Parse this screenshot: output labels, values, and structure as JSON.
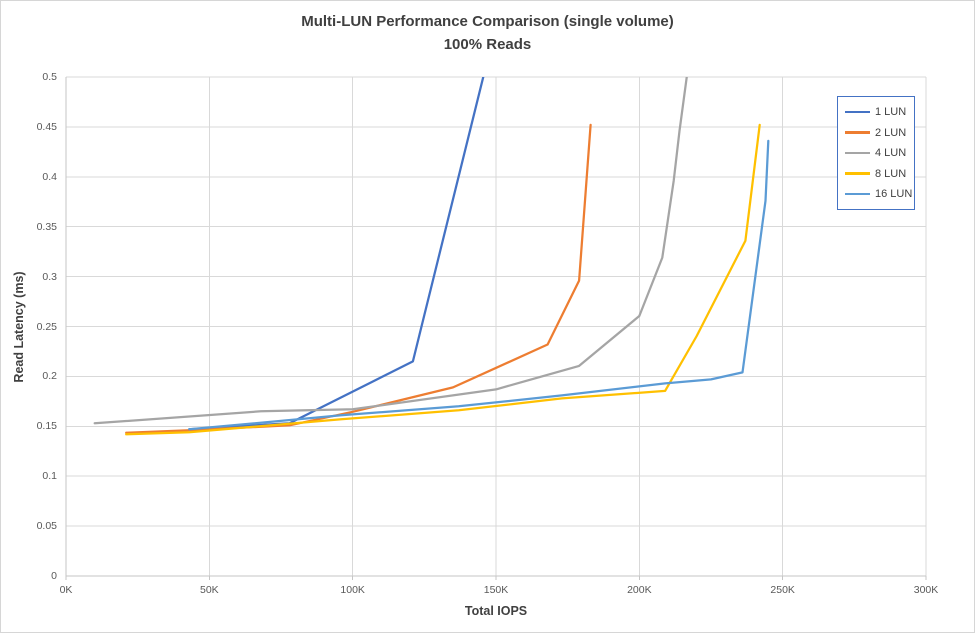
{
  "chart_data": {
    "type": "line",
    "title": "Multi-LUN Performance Comparison (single volume)",
    "subtitle": "100% Reads",
    "xlabel": "Total IOPS",
    "ylabel": "Read Latency (ms)",
    "xlim": [
      0,
      300000
    ],
    "ylim": [
      0,
      0.5
    ],
    "grid": true,
    "legend_position": "top-right",
    "legend_border_color": "#4472C4",
    "x_ticks": [
      {
        "value": 0,
        "label": "0K"
      },
      {
        "value": 50000,
        "label": "50K"
      },
      {
        "value": 100000,
        "label": "100K"
      },
      {
        "value": 150000,
        "label": "150K"
      },
      {
        "value": 200000,
        "label": "200K"
      },
      {
        "value": 250000,
        "label": "250K"
      },
      {
        "value": 300000,
        "label": "300K"
      }
    ],
    "y_ticks": [
      {
        "value": 0,
        "label": "0"
      },
      {
        "value": 0.05,
        "label": "0.05"
      },
      {
        "value": 0.1,
        "label": "0.1"
      },
      {
        "value": 0.15,
        "label": "0.15"
      },
      {
        "value": 0.2,
        "label": "0.2"
      },
      {
        "value": 0.25,
        "label": "0.25"
      },
      {
        "value": 0.3,
        "label": "0.3"
      },
      {
        "value": 0.35,
        "label": "0.35"
      },
      {
        "value": 0.4,
        "label": "0.4"
      },
      {
        "value": 0.45,
        "label": "0.45"
      },
      {
        "value": 0.5,
        "label": "0.5"
      }
    ],
    "series": [
      {
        "name": "1 LUN",
        "color": "#4472C4",
        "points": [
          [
            43000,
            0.147
          ],
          [
            78000,
            0.153
          ],
          [
            121000,
            0.215
          ],
          [
            124000,
            0.25
          ],
          [
            146000,
            0.505
          ]
        ]
      },
      {
        "name": "2 LUN",
        "color": "#ED7D31",
        "points": [
          [
            21000,
            0.1435
          ],
          [
            43000,
            0.146
          ],
          [
            78000,
            0.151
          ],
          [
            100000,
            0.1645
          ],
          [
            135000,
            0.189
          ],
          [
            168000,
            0.232
          ],
          [
            179000,
            0.296
          ],
          [
            183000,
            0.452
          ]
        ]
      },
      {
        "name": "4 LUN",
        "color": "#A5A5A5",
        "points": [
          [
            10000,
            0.153
          ],
          [
            68000,
            0.165
          ],
          [
            100000,
            0.167
          ],
          [
            150000,
            0.187
          ],
          [
            179000,
            0.2105
          ],
          [
            200000,
            0.2605
          ],
          [
            208000,
            0.319
          ],
          [
            212000,
            0.396
          ],
          [
            214000,
            0.446
          ],
          [
            217000,
            0.51
          ]
        ]
      },
      {
        "name": "8 LUN",
        "color": "#FFC000",
        "points": [
          [
            21000,
            0.142
          ],
          [
            43000,
            0.144
          ],
          [
            96000,
            0.157
          ],
          [
            137000,
            0.166
          ],
          [
            173000,
            0.178
          ],
          [
            209000,
            0.1855
          ],
          [
            220000,
            0.2405
          ],
          [
            237000,
            0.336
          ],
          [
            242000,
            0.452
          ]
        ]
      },
      {
        "name": "16 LUN",
        "color": "#5B9BD5",
        "points": [
          [
            43000,
            0.147
          ],
          [
            96000,
            0.161
          ],
          [
            137000,
            0.17
          ],
          [
            173000,
            0.181
          ],
          [
            209000,
            0.193
          ],
          [
            225000,
            0.197
          ],
          [
            236000,
            0.204
          ],
          [
            244000,
            0.376
          ],
          [
            245000,
            0.436
          ]
        ]
      }
    ]
  }
}
